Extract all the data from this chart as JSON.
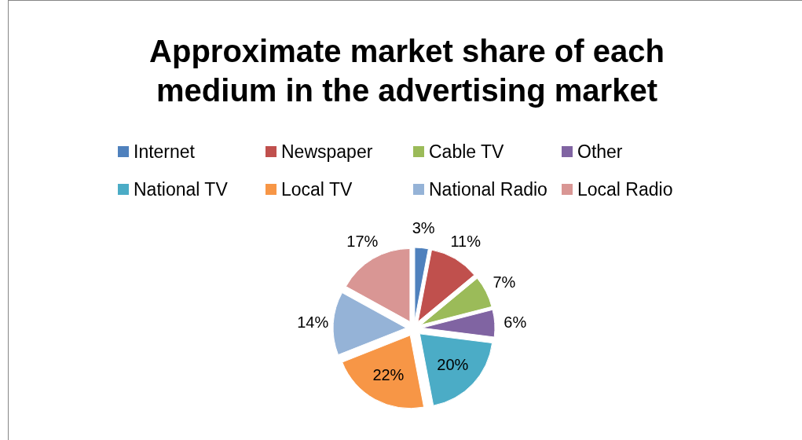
{
  "chart_data": {
    "type": "pie",
    "title": "Approximate market share of each medium in the advertising market",
    "categories": [
      "Internet",
      "Newspaper",
      "Cable TV",
      "Other",
      "National TV",
      "Local TV",
      "National Radio",
      "Local Radio"
    ],
    "values": [
      3,
      11,
      7,
      6,
      20,
      22,
      14,
      17
    ],
    "colors": [
      "#4f81bd",
      "#c0504d",
      "#9bbb59",
      "#8064a2",
      "#4bacc6",
      "#f79646",
      "#95b3d7",
      "#d99694"
    ],
    "value_labels": [
      "3%",
      "11%",
      "7%",
      "6%",
      "20%",
      "22%",
      "14%",
      "17%"
    ],
    "legend": "top"
  }
}
